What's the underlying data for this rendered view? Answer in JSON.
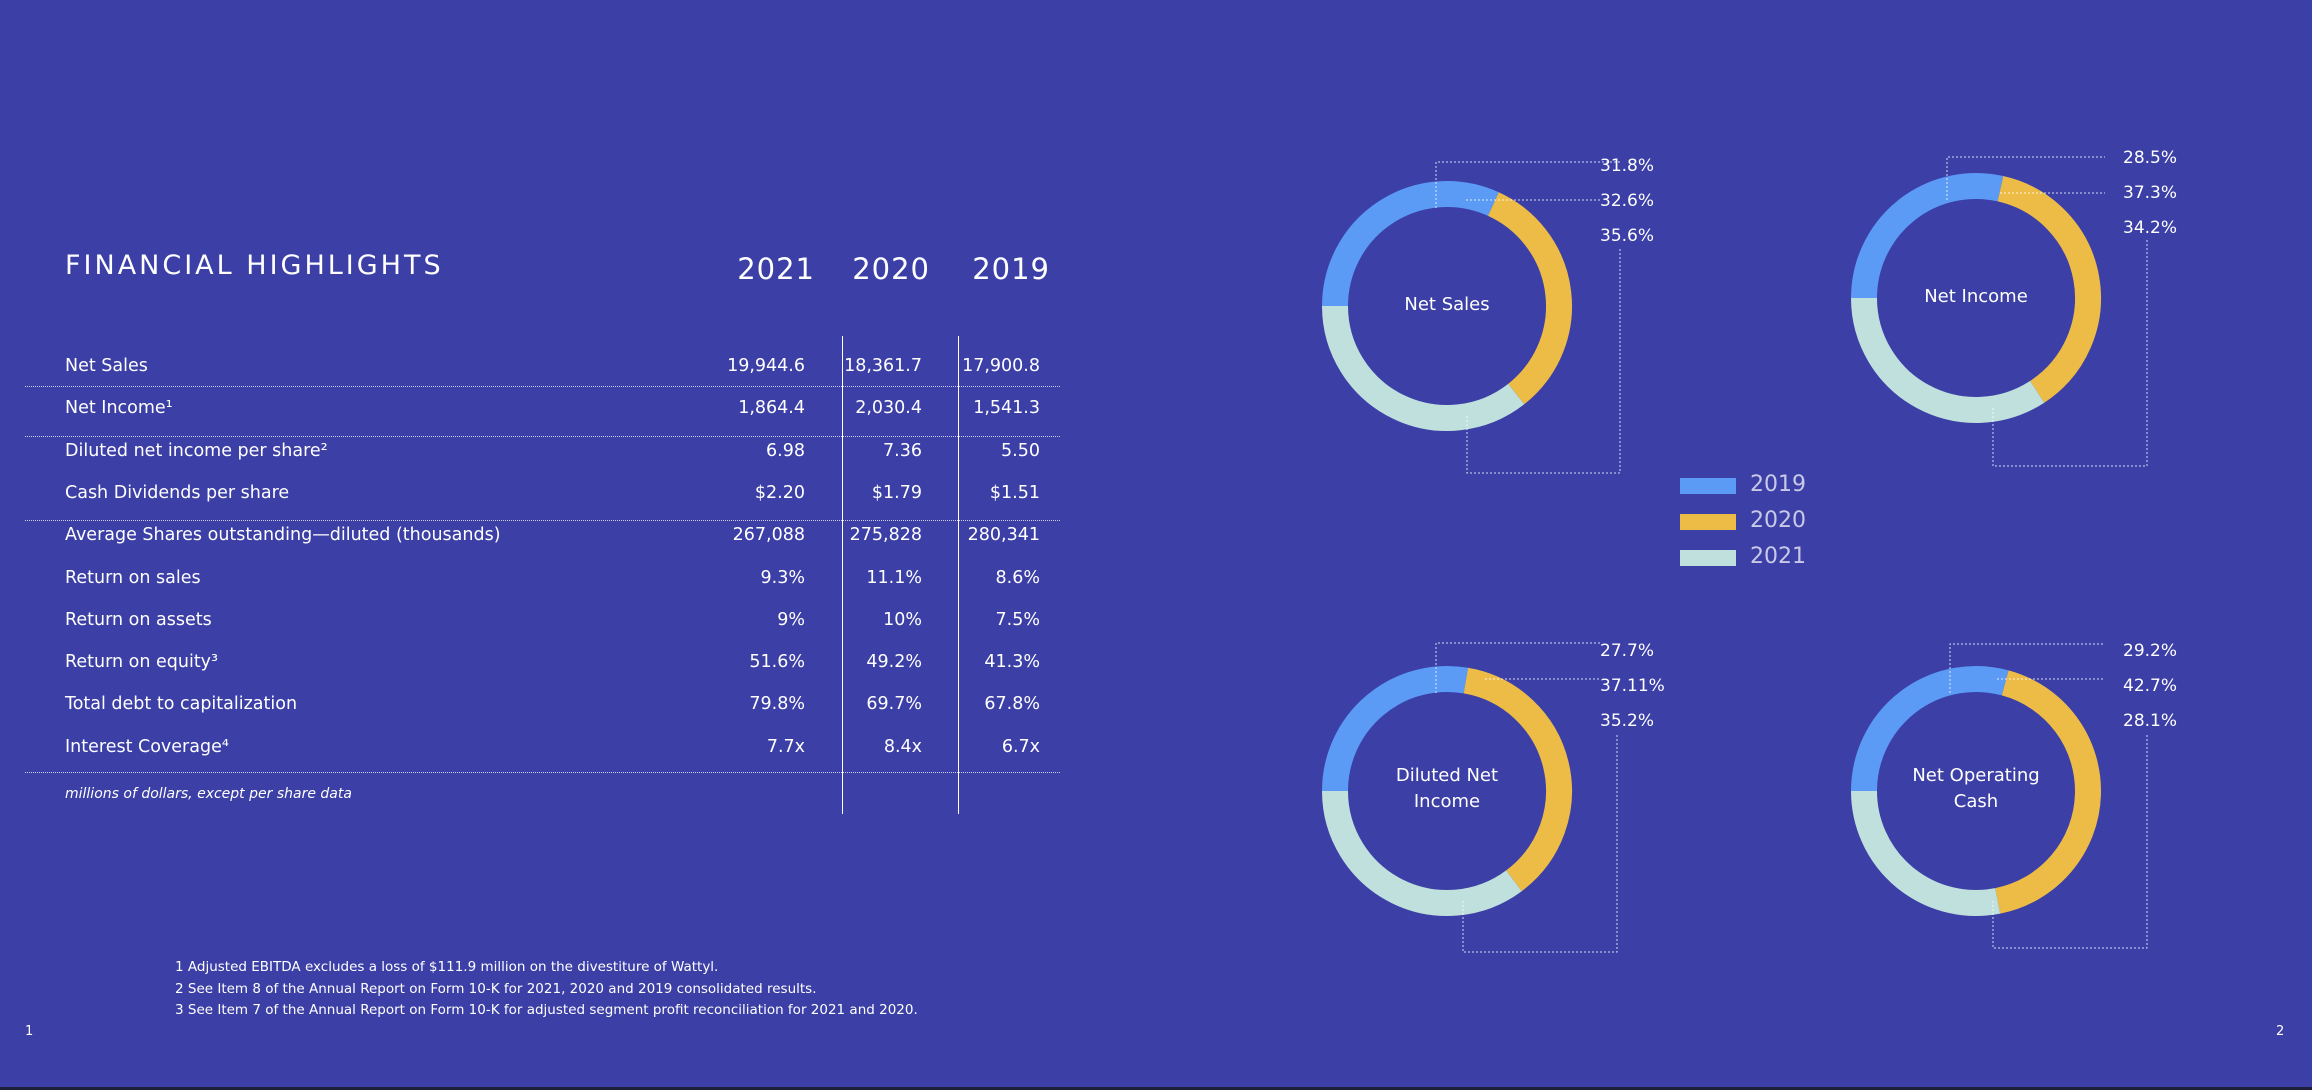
{
  "title": "FINANCIAL HIGHLIGHTS",
  "years": [
    "2021",
    "2020",
    "2019"
  ],
  "rows": [
    {
      "label": "Net Sales",
      "values": [
        "19,944.6",
        "18,361.7",
        "17,900.8"
      ]
    },
    {
      "label": "Net Income¹",
      "values": [
        "1,864.4",
        "2,030.4",
        "1,541.3"
      ]
    },
    {
      "label": "Diluted net income per share²",
      "values": [
        "6.98",
        "7.36",
        "5.50"
      ]
    },
    {
      "label": "Cash Dividends per share",
      "values": [
        "$2.20",
        "$1.79",
        "$1.51"
      ]
    },
    {
      "label": "Average Shares outstanding—diluted (thousands)",
      "values": [
        "267,088",
        "275,828",
        "280,341"
      ]
    },
    {
      "label": "Return on sales",
      "values": [
        "9.3%",
        "11.1%",
        "8.6%"
      ]
    },
    {
      "label": "Return on assets",
      "values": [
        "9%",
        "10%",
        "7.5%"
      ]
    },
    {
      "label": "Return on equity³",
      "values": [
        "51.6%",
        "49.2%",
        "41.3%"
      ]
    },
    {
      "label": "Total debt to capitalization",
      "values": [
        "79.8%",
        "69.7%",
        "67.8%"
      ]
    },
    {
      "label": "Interest Coverage⁴",
      "values": [
        "7.7x",
        "8.4x",
        "6.7x"
      ]
    }
  ],
  "note": "millions of dollars, except per share data",
  "footnotes": [
    "1 Adjusted EBITDA excludes a loss of $111.9 million on the divestiture of Wattyl.",
    "2 See Item 8 of the Annual Report on Form 10-K for 2021, 2020 and 2019 consolidated results.",
    "3 See Item 7 of the Annual Report on Form 10-K for adjusted segment profit reconciliation for 2021 and 2020."
  ],
  "page_left": "1",
  "page_right": "2",
  "colors": {
    "background": "#3b3fa6",
    "y2019": "#5b9bf5",
    "y2020": "#ecbc47",
    "y2021": "#bfe0dc"
  },
  "legend": [
    {
      "label": "2019",
      "color": "#5b9bf5"
    },
    {
      "label": "2020",
      "color": "#ecbc47"
    },
    {
      "label": "2021",
      "color": "#bfe0dc"
    }
  ],
  "chart_data": [
    {
      "type": "pie",
      "title": "Net Sales",
      "categories": [
        "2019",
        "2020",
        "2021"
      ],
      "values": [
        31.8,
        32.6,
        35.6
      ],
      "labels": [
        "31.8%",
        "32.6%",
        "35.6%"
      ]
    },
    {
      "type": "pie",
      "title": "Net Income",
      "categories": [
        "2019",
        "2020",
        "2021"
      ],
      "values": [
        28.5,
        37.3,
        34.2
      ],
      "labels": [
        "28.5%",
        "37.3%",
        "34.2%"
      ]
    },
    {
      "type": "pie",
      "title": "Diluted Net Income",
      "categories": [
        "2019",
        "2020",
        "2021"
      ],
      "values": [
        27.7,
        37.11,
        35.2
      ],
      "labels": [
        "27.7%",
        "37.11%",
        "35.2%"
      ]
    },
    {
      "type": "pie",
      "title": "Net Operating Cash",
      "categories": [
        "2019",
        "2020",
        "2021"
      ],
      "values": [
        29.2,
        42.7,
        28.1
      ],
      "labels": [
        "29.2%",
        "42.7%",
        "28.1%"
      ]
    }
  ]
}
